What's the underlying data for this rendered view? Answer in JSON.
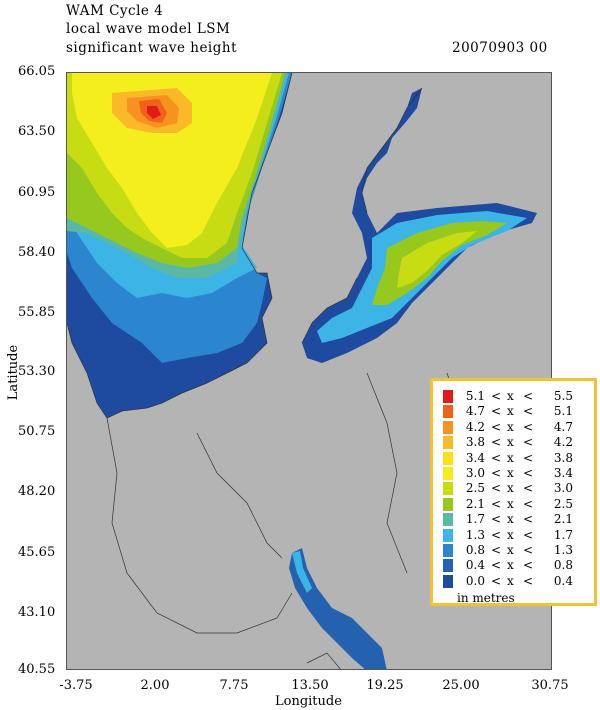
{
  "header": {
    "line1": "WAM Cycle 4",
    "line2": "local wave model LSM",
    "line3": "significant wave height",
    "date": "20070903 00"
  },
  "axes": {
    "xlabel": "Longitude",
    "ylabel": "Latitude",
    "xticks": [
      "-3.75",
      "2.00",
      "7.75",
      "13.50",
      "19.25",
      "25.00",
      "30.75"
    ],
    "yticks": [
      "66.05",
      "63.50",
      "60.95",
      "58.40",
      "55.85",
      "53.30",
      "50.75",
      "48.20",
      "45.65",
      "43.10",
      "40.55"
    ],
    "xlim": [
      -3.75,
      30.75
    ],
    "ylim": [
      40.55,
      66.05
    ]
  },
  "colors": {
    "land": "#b4b4b4",
    "coastline": "#333333",
    "border": "#555555",
    "legend_border": "#f2c230"
  },
  "legend": {
    "units": "in metres",
    "bins": [
      {
        "lo": "5.1",
        "hi": "5.5",
        "color": "#e31a1c"
      },
      {
        "lo": "4.7",
        "hi": "5.1",
        "color": "#f0611a"
      },
      {
        "lo": "4.2",
        "hi": "4.7",
        "color": "#f7921e"
      },
      {
        "lo": "3.8",
        "hi": "4.2",
        "color": "#fbb829"
      },
      {
        "lo": "3.4",
        "hi": "3.8",
        "color": "#ffe014"
      },
      {
        "lo": "3.0",
        "hi": "3.4",
        "color": "#f4ee1e"
      },
      {
        "lo": "2.5",
        "hi": "3.0",
        "color": "#c8dc14"
      },
      {
        "lo": "2.1",
        "hi": "2.5",
        "color": "#96c81e"
      },
      {
        "lo": "1.7",
        "hi": "2.1",
        "color": "#5ab9a5"
      },
      {
        "lo": "1.3",
        "hi": "1.7",
        "color": "#3cb4e6"
      },
      {
        "lo": "0.8",
        "hi": "1.3",
        "color": "#2b86cf"
      },
      {
        "lo": "0.4",
        "hi": "0.8",
        "color": "#2462b0"
      },
      {
        "lo": "0.0",
        "hi": "0.4",
        "color": "#1e4aa0"
      }
    ],
    "lt": "<",
    "x": "x"
  }
}
